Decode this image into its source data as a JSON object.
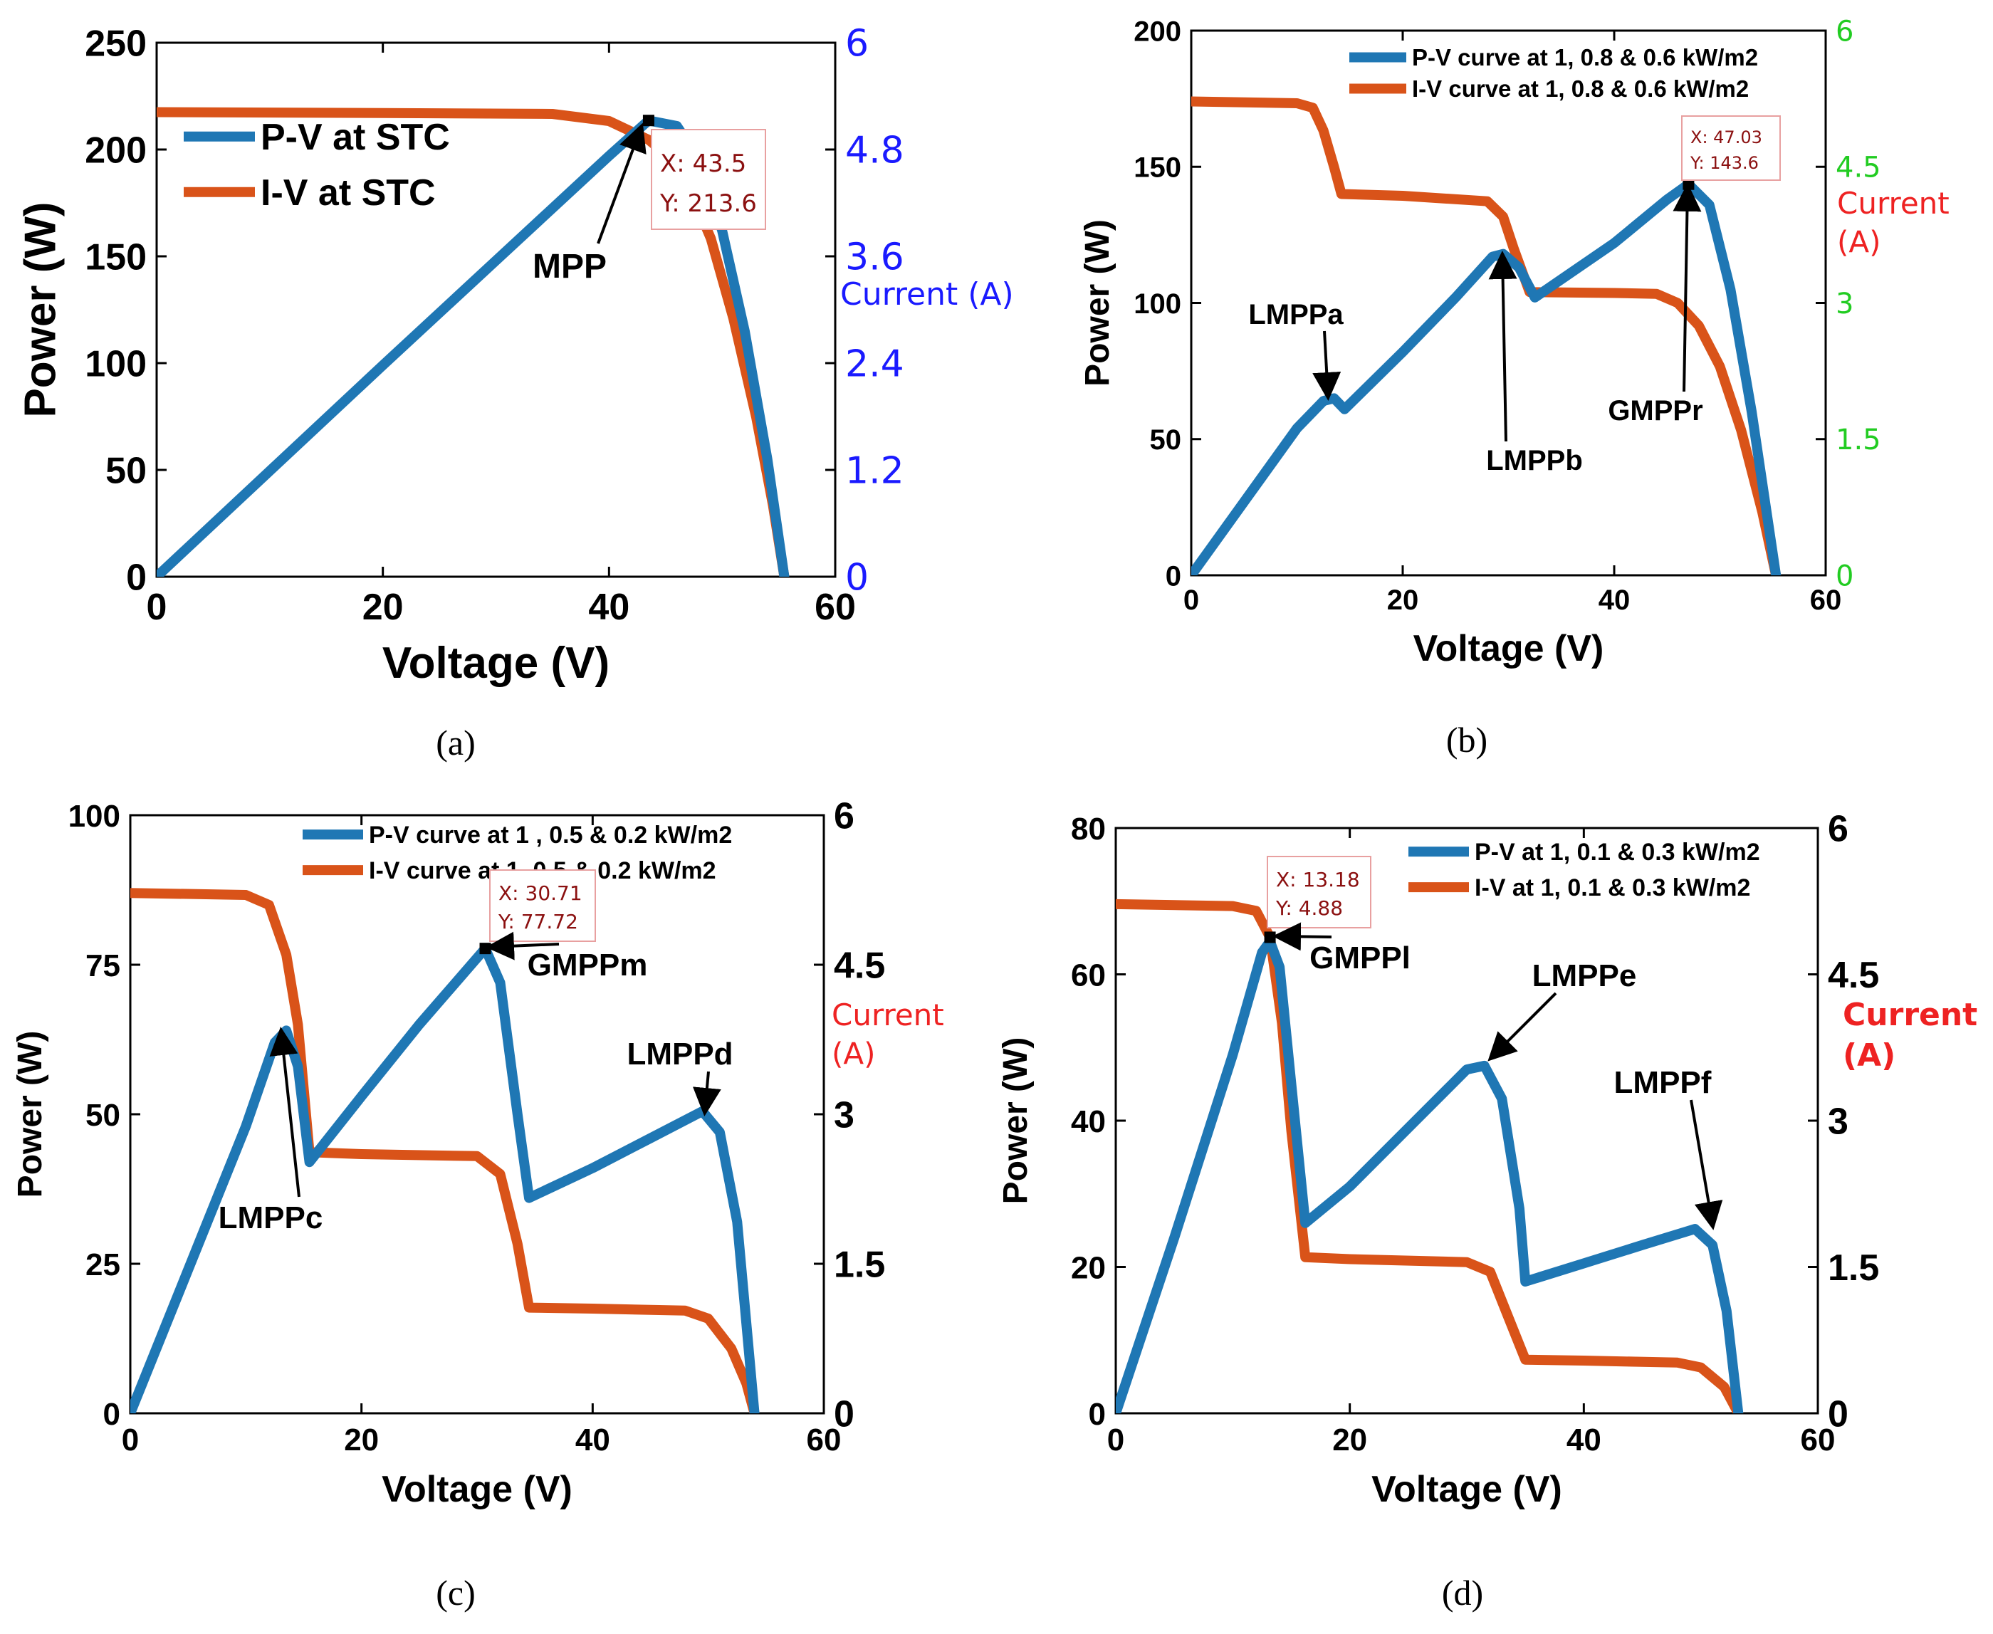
{
  "colors": {
    "pv": "#1f77b4",
    "iv": "#d95319",
    "right_axis_a": "#1a1aff",
    "right_axis_b": "#22cc22",
    "right_axis_cd": "#000000",
    "current_label_red": "#ee2222",
    "datatip_text": "#8b1010",
    "datatip_border": "#e8a0a0"
  },
  "chart_data": [
    {
      "id": "a",
      "type": "line",
      "caption": "(a)",
      "xlabel": "Voltage (V)",
      "ylabel": "Power (W)",
      "y2label": "Current (A)",
      "xlim": [
        0,
        60
      ],
      "ylim": [
        0,
        250
      ],
      "y2lim": [
        0,
        6
      ],
      "xticks": [
        "0",
        "20",
        "40",
        "60"
      ],
      "yticks": [
        "0",
        "50",
        "100",
        "150",
        "200",
        "250"
      ],
      "y2ticks": [
        "0",
        "1.2",
        "2.4",
        "3.6",
        "4.8",
        "6"
      ],
      "legend": [
        "P-V  at STC",
        "I-V  at STC"
      ],
      "series": [
        {
          "name": "P-V  at STC",
          "axis": "left",
          "x": [
            0,
            10,
            20,
            30,
            40,
            43.5,
            46,
            48,
            50,
            52,
            54,
            55.5
          ],
          "y": [
            0,
            49.5,
            99,
            148,
            197,
            213.6,
            211,
            195,
            162,
            115,
            55,
            0
          ]
        },
        {
          "name": "I-V  at STC",
          "axis": "right",
          "x": [
            0,
            20,
            35,
            40,
            43.5,
            45,
            47,
            49,
            51,
            53,
            54.5,
            55.5
          ],
          "y": [
            5.22,
            5.21,
            5.2,
            5.12,
            4.91,
            4.75,
            4.4,
            3.8,
            2.9,
            1.8,
            0.8,
            0
          ]
        }
      ],
      "datatip": {
        "x": 43.5,
        "y": 213.6,
        "x_label": "X: 43.5",
        "y_label": "Y: 213.6"
      },
      "annotations": [
        {
          "text": "MPP",
          "x": 43.5,
          "y": 213.6
        }
      ]
    },
    {
      "id": "b",
      "type": "line",
      "caption": "(b)",
      "xlabel": "Voltage (V)",
      "ylabel": "Power (W)",
      "y2label": "Current\n(A)",
      "xlim": [
        0,
        60
      ],
      "ylim": [
        0,
        200
      ],
      "y2lim": [
        0,
        6
      ],
      "xticks": [
        "0",
        "20",
        "40",
        "60"
      ],
      "yticks": [
        "0",
        "50",
        "100",
        "150",
        "200"
      ],
      "y2ticks": [
        "0",
        "1.5",
        "3",
        "4.5",
        "6"
      ],
      "legend": [
        "P-V curve at 1, 0.8 & 0.6 kW/m2",
        "I-V curve at 1, 0.8 & 0.6 kW/m2"
      ],
      "series": [
        {
          "name": "P-V curve at 1, 0.8 & 0.6 kW/m2",
          "axis": "left",
          "x": [
            0,
            5,
            10,
            12.5,
            13.5,
            14.5,
            20,
            25,
            28.5,
            29.5,
            31,
            32.5,
            40,
            45,
            47.03,
            49,
            51,
            53,
            55.3
          ],
          "y": [
            0,
            27,
            54,
            64,
            65,
            61,
            82,
            102,
            117,
            118,
            113,
            102,
            122,
            138,
            143.6,
            136,
            105,
            60,
            0
          ]
        },
        {
          "name": "I-V curve at 1, 0.8 & 0.6 kW/m2",
          "axis": "right",
          "x": [
            0,
            10,
            11.5,
            12.5,
            13.5,
            14.2,
            20,
            28,
            29.5,
            30.5,
            32,
            40,
            44,
            46,
            48,
            50,
            52,
            54,
            55.3
          ],
          "y": [
            5.22,
            5.2,
            5.15,
            4.9,
            4.5,
            4.2,
            4.18,
            4.12,
            3.95,
            3.6,
            3.12,
            3.11,
            3.1,
            3.0,
            2.75,
            2.3,
            1.6,
            0.7,
            0
          ]
        }
      ],
      "datatip": {
        "x": 47.03,
        "y": 143.6,
        "x_label": "X: 47.03",
        "y_label": "Y: 143.6"
      },
      "annotations": [
        {
          "text": "LMPPa",
          "x": 13.2,
          "y": 64
        },
        {
          "text": "LMPPb",
          "x": 29.3,
          "y": 118
        },
        {
          "text": "GMPPr",
          "x": 47.03,
          "y": 143.6
        }
      ]
    },
    {
      "id": "c",
      "type": "line",
      "caption": "(c)",
      "xlabel": "Voltage (V)",
      "ylabel": "Power (W)",
      "y2label": "Current\n(A)",
      "xlim": [
        0,
        60
      ],
      "ylim": [
        0,
        100
      ],
      "y2lim": [
        0,
        6
      ],
      "xticks": [
        "0",
        "20",
        "40",
        "60"
      ],
      "yticks": [
        "0",
        "25",
        "50",
        "75",
        "100"
      ],
      "y2ticks": [
        "0",
        "1.5",
        "3",
        "4.5",
        "6"
      ],
      "legend": [
        "P-V curve at 1 , 0.5 & 0.2 kW/m2",
        "I-V curve at 1, 0.5 & 0.2 kW/m2"
      ],
      "series": [
        {
          "name": "P-V curve at 1 , 0.5 & 0.2 kW/m2",
          "axis": "left",
          "x": [
            0,
            5,
            10,
            12.5,
            13.5,
            14.5,
            15.5,
            20,
            25,
            30.71,
            32,
            33.5,
            34.5,
            40,
            45,
            49.5,
            51,
            52.5,
            54
          ],
          "y": [
            0,
            24,
            48,
            62,
            64,
            58,
            42,
            53,
            65,
            77.72,
            72,
            50,
            36,
            41,
            46,
            50.5,
            47,
            32,
            0
          ]
        },
        {
          "name": "I-V curve at 1, 0.5 & 0.2 kW/m2",
          "axis": "right",
          "x": [
            0,
            10,
            12,
            13.5,
            14.5,
            15.5,
            20,
            30,
            32,
            33.5,
            34.5,
            40,
            48,
            50,
            52,
            53.3,
            54
          ],
          "y": [
            5.22,
            5.2,
            5.1,
            4.6,
            3.9,
            2.62,
            2.6,
            2.58,
            2.4,
            1.7,
            1.06,
            1.05,
            1.03,
            0.95,
            0.65,
            0.3,
            0
          ]
        }
      ],
      "datatip": {
        "x": 30.71,
        "y": 77.72,
        "x_label": "X: 30.71",
        "y_label": "Y: 77.72"
      },
      "annotations": [
        {
          "text": "LMPPc",
          "x": 13.3,
          "y": 64
        },
        {
          "text": "GMPPm",
          "x": 30.71,
          "y": 77.72
        },
        {
          "text": "LMPPd",
          "x": 49.5,
          "y": 50.5
        }
      ]
    },
    {
      "id": "d",
      "type": "line",
      "caption": "(d)",
      "xlabel": "Voltage (V)",
      "ylabel": "Power (W)",
      "y2label": "Current\n(A)",
      "xlim": [
        0,
        60
      ],
      "ylim": [
        0,
        80
      ],
      "y2lim": [
        0,
        6
      ],
      "xticks": [
        "0",
        "20",
        "40",
        "60"
      ],
      "yticks": [
        "0",
        "20",
        "40",
        "60",
        "80"
      ],
      "y2ticks": [
        "0",
        "1.5",
        "3",
        "4.5",
        "6"
      ],
      "legend": [
        "P-V at 1, 0.1 & 0.3 kW/m2",
        "I-V at 1, 0.1 & 0.3 kW/m2"
      ],
      "series": [
        {
          "name": "P-V at 1, 0.1 & 0.3 kW/m2",
          "axis": "left",
          "x": [
            0,
            5,
            10,
            12.5,
            13.18,
            14,
            15,
            16.2,
            20,
            25,
            30,
            31.5,
            33,
            34.5,
            35,
            40,
            45,
            49.5,
            51,
            52.2,
            53.2
          ],
          "y": [
            0,
            24,
            49,
            63,
            64.5,
            61,
            45,
            26,
            31,
            39,
            47,
            47.5,
            43,
            28,
            18,
            20.5,
            23,
            25.2,
            23,
            14,
            0
          ]
        },
        {
          "name": "I-V at 1, 0.1 & 0.3 kW/m2",
          "axis": "right",
          "x": [
            0,
            10,
            12,
            13.18,
            14.2,
            15,
            16.2,
            20,
            30,
            32,
            33.5,
            35,
            40,
            48,
            50,
            52,
            53.2
          ],
          "y": [
            5.22,
            5.2,
            5.15,
            4.88,
            4.0,
            2.9,
            1.6,
            1.58,
            1.55,
            1.45,
            1.0,
            0.55,
            0.54,
            0.52,
            0.47,
            0.27,
            0
          ]
        }
      ],
      "datatip": {
        "x": 13.18,
        "y": 4.88,
        "x_label": "X: 13.18",
        "y_label": "Y: 4.88"
      },
      "annotations": [
        {
          "text": "GMPPl",
          "x": 13.18,
          "y": 64.5
        },
        {
          "text": "LMPPe",
          "x": 31.5,
          "y": 47.5
        },
        {
          "text": "LMPPf",
          "x": 49.5,
          "y": 25.2
        }
      ]
    }
  ]
}
